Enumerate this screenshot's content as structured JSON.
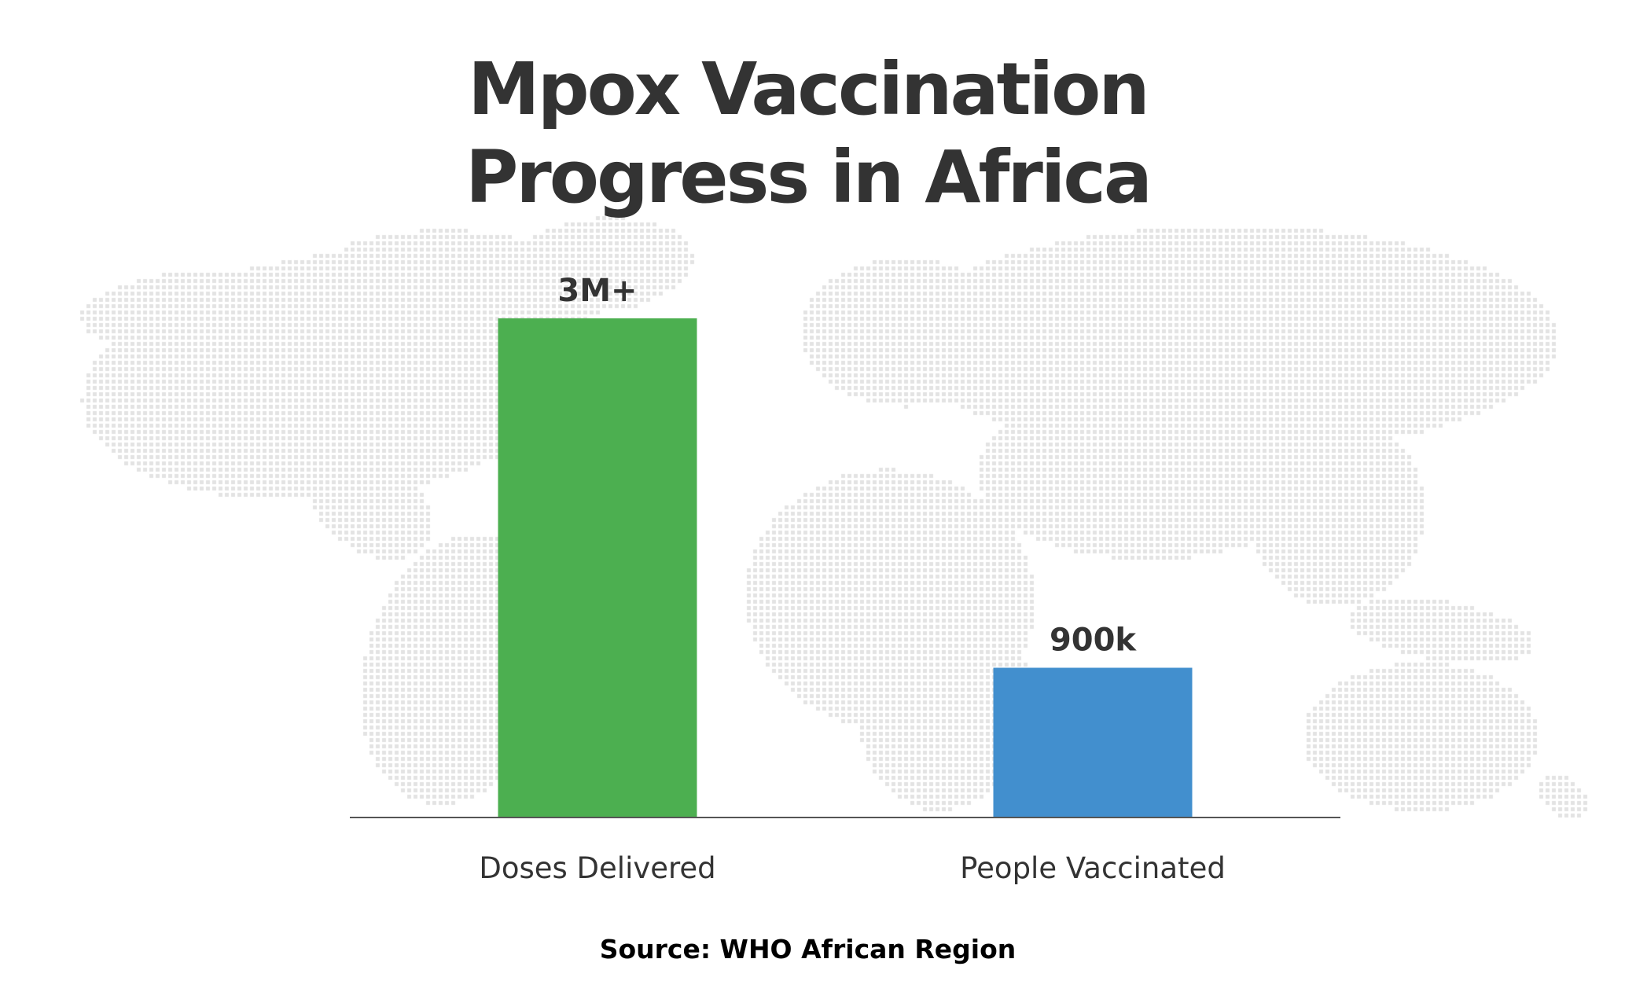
{
  "title_lines": [
    "Mpox Vaccination",
    "Progress in Africa"
  ],
  "source": "Source: WHO African Region",
  "colors": {
    "title": "#333333",
    "axis": "#555555",
    "map_dots": "#e3e3e3",
    "bars": [
      "#4caf50",
      "#428fce"
    ]
  },
  "chart_data": {
    "type": "bar",
    "title": "Mpox Vaccination Progress in Africa",
    "categories": [
      "Doses Delivered",
      "People Vaccinated"
    ],
    "values": [
      3000000,
      900000
    ],
    "value_labels": [
      "3M+",
      "900k"
    ],
    "ylim": [
      0,
      3000000
    ],
    "grid": false,
    "legend": "none"
  }
}
